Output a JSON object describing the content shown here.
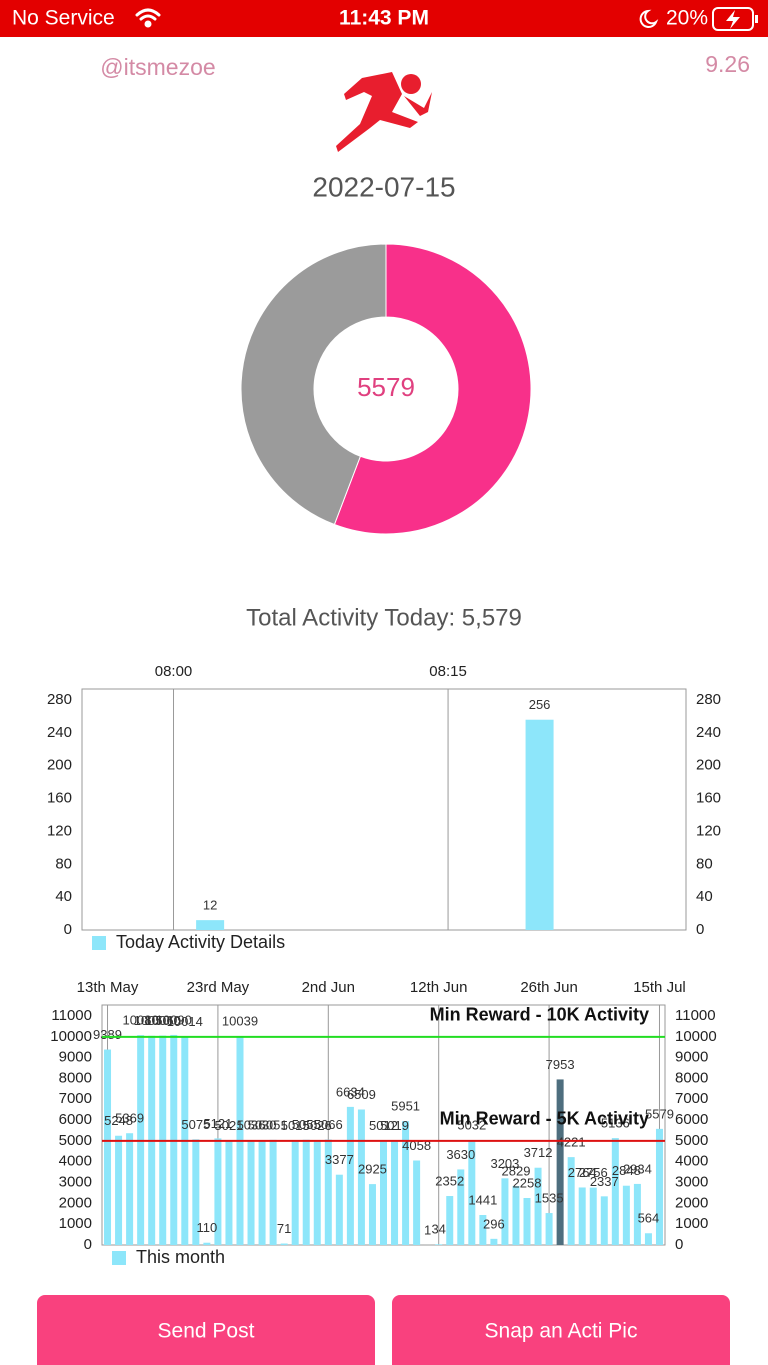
{
  "status_bar": {
    "carrier": "No Service",
    "time": "11:43 PM",
    "battery": "20%"
  },
  "header": {
    "username": "@itsmezoe",
    "score": "9.26",
    "date": "2022-07-15"
  },
  "total_label": "Total Activity Today: 5,579",
  "chart_data": [
    {
      "type": "pie",
      "center_label": "5579",
      "values": [
        5579,
        4421
      ],
      "colors": [
        "#f8308a",
        "#9b9b9b"
      ]
    },
    {
      "type": "bar",
      "x": [
        "08:02",
        "08:20"
      ],
      "xlim": [
        "07:55",
        "08:28"
      ],
      "xticks": [
        "08:00",
        "08:15"
      ],
      "series": [
        {
          "name": "Today Activity Details",
          "color": "#8de6fa",
          "values": [
            12,
            256
          ]
        }
      ],
      "ylim": [
        0,
        280
      ],
      "yticks": [
        0,
        40,
        80,
        120,
        160,
        200,
        240,
        280
      ],
      "y2lim": [
        0,
        280
      ],
      "y2ticks": [
        0,
        40,
        80,
        120,
        160,
        200,
        240,
        280
      ],
      "grid": "x"
    },
    {
      "type": "bar",
      "categories": [
        "13th May",
        null,
        null,
        null,
        null,
        null,
        null,
        null,
        null,
        null,
        "23rd May",
        null,
        null,
        null,
        null,
        null,
        null,
        null,
        null,
        null,
        "2nd Jun",
        null,
        null,
        null,
        null,
        null,
        null,
        null,
        null,
        null,
        "12th Jun",
        null,
        null,
        null,
        null,
        null,
        null,
        null,
        null,
        null,
        "26th Jun",
        null,
        null,
        null,
        null,
        null,
        null,
        null,
        null,
        null,
        "15th Jul"
      ],
      "series": [
        {
          "name": "This month",
          "color": "#8de6fa",
          "values": [
            9389,
            5248,
            5369,
            10080,
            10050,
            10060,
            10090,
            10014,
            5075,
            110,
            5121,
            5021,
            10039,
            5036,
            5030,
            5051,
            71,
            5015,
            5055,
            5026,
            5066,
            3377,
            6634,
            6509,
            2925,
            5012,
            5019,
            5951,
            4058,
            1,
            34,
            2352,
            3630,
            5032,
            1441,
            296,
            3203,
            2829,
            2258,
            3712,
            1535,
            7953,
            4221,
            2764,
            2756,
            2337,
            5136,
            2848,
            2934,
            564,
            5579
          ]
        }
      ],
      "highlight": {
        "index": 41,
        "color": "#4e6e7e"
      },
      "reference_lines": [
        {
          "value": 10000,
          "label": "Min Reward - 10K Activity",
          "color": "#22dd22"
        },
        {
          "value": 5000,
          "label": "Min Reward - 5K Activity",
          "color": "#dd1111"
        }
      ],
      "ylim": [
        0,
        11000
      ],
      "yticks": [
        0,
        1000,
        2000,
        3000,
        4000,
        5000,
        6000,
        7000,
        8000,
        9000,
        10000,
        11000
      ],
      "y2lim": [
        0,
        11000
      ],
      "y2ticks": [
        0,
        1000,
        2000,
        3000,
        4000,
        5000,
        6000,
        7000,
        8000,
        9000,
        10000,
        11000
      ],
      "grid": "x"
    }
  ],
  "buttons": [
    "Send Post",
    "Snap an Acti Pic"
  ]
}
